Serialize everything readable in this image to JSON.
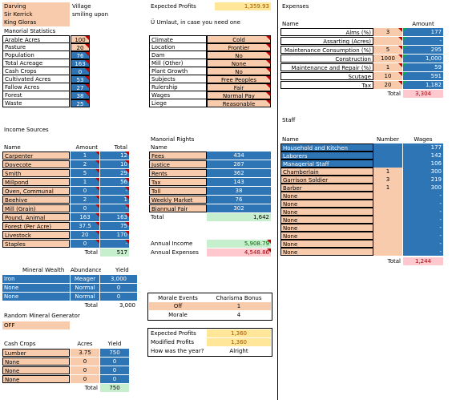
{
  "info": {
    "name_label": "Darving",
    "name_value": "Village",
    "lord_label": "Sir Kerrick",
    "lord_value": "smiling upon",
    "king_label": "King Gloras",
    "expected_profits_label": "Expected Profits",
    "expected_profits_value": "1,359.93",
    "note": "Ü  Umlaut, in case you need one"
  },
  "manorial": {
    "title": "Manorial Statistics",
    "rows": [
      {
        "label": "Arable Acres",
        "value": "100"
      },
      {
        "label": "Pasture",
        "value": "20"
      },
      {
        "label": "Population",
        "value": "76"
      },
      {
        "label": "Total Acreage",
        "value": "163"
      },
      {
        "label": "Cash Crops",
        "value": "0"
      },
      {
        "label": "Cultivated Acres",
        "value": "53"
      },
      {
        "label": "Fallow Acres",
        "value": "27"
      },
      {
        "label": "Forest",
        "value": "38"
      },
      {
        "label": "Waste",
        "value": "25"
      }
    ]
  },
  "attributes": {
    "rows": [
      {
        "label": "Climate",
        "value": "Cold"
      },
      {
        "label": "Location",
        "value": "Frontier"
      },
      {
        "label": "Dam",
        "value": "No"
      },
      {
        "label": "Mill (Other)",
        "value": "None"
      },
      {
        "label": "Plant Growth",
        "value": "No"
      },
      {
        "label": "Subjects",
        "value": "Free Peoples"
      },
      {
        "label": "Rulership",
        "value": "Fair"
      },
      {
        "label": "Wages",
        "value": "Normal Pay"
      },
      {
        "label": "Liege",
        "value": "Reasonable"
      }
    ]
  },
  "income": {
    "title": "Income Sources",
    "headers": {
      "name": "Name",
      "amount": "Amount",
      "total": "Total"
    },
    "rows": [
      {
        "name": "Carpenter",
        "amount": "1",
        "total": "12"
      },
      {
        "name": "Dovecote",
        "amount": "2",
        "total": "10"
      },
      {
        "name": "Smith",
        "amount": "5",
        "total": "29"
      },
      {
        "name": "Millpond",
        "amount": "1",
        "total": "56"
      },
      {
        "name": "Oven, Communal",
        "amount": "0",
        "total": "-"
      },
      {
        "name": "Beehive",
        "amount": "2",
        "total": "1"
      },
      {
        "name": "Mill (Grain)",
        "amount": "0",
        "total": "-"
      },
      {
        "name": "Pound, Animal",
        "amount": "163",
        "total": "163"
      },
      {
        "name": "Forest (Per Acre)",
        "amount": "37.5",
        "total": "75"
      },
      {
        "name": "Livestock",
        "amount": "20",
        "total": "170"
      },
      {
        "name": "Staples",
        "amount": "0",
        "total": "-"
      }
    ],
    "total_label": "Total",
    "total_value": "517"
  },
  "rights": {
    "title": "Manorial Rights",
    "name_header": "Name",
    "rows": [
      {
        "name": "Fees",
        "value": "434"
      },
      {
        "name": "Justice",
        "value": "287"
      },
      {
        "name": "Rents",
        "value": "362"
      },
      {
        "name": "Tax",
        "value": "143"
      },
      {
        "name": "Toll",
        "value": "38"
      },
      {
        "name": "Weekly Market",
        "value": "76"
      },
      {
        "name": "Biannual Fair",
        "value": "302"
      }
    ],
    "total_label": "Total",
    "total_value": "1,642",
    "annual_income_label": "Annual Income",
    "annual_income_value": "5,908.79",
    "annual_expenses_label": "Annual Expenses",
    "annual_expenses_value": "4,548.86"
  },
  "mineral": {
    "headers": {
      "name": "Mineral Wealth",
      "abundance": "Abundance",
      "yield": "Yield"
    },
    "rows": [
      {
        "name": "Iron",
        "abundance": "Meager",
        "yield": "3,000"
      },
      {
        "name": "None",
        "abundance": "Normal",
        "yield": "0"
      },
      {
        "name": "None",
        "abundance": "Normal",
        "yield": "0"
      }
    ],
    "total_label": "Total",
    "total_value": "3,000",
    "generator_label": "Random Mineral Generator",
    "generator_value": "OFF"
  },
  "crops": {
    "headers": {
      "name": "Cash Crops",
      "acres": "Acres",
      "yield": "Yield"
    },
    "rows": [
      {
        "name": "Lumber",
        "acres": "3.75",
        "yield": "750"
      },
      {
        "name": "None",
        "acres": "0",
        "yield": "0"
      },
      {
        "name": "None",
        "acres": "0",
        "yield": "0"
      },
      {
        "name": "None",
        "acres": "0",
        "yield": "0"
      }
    ],
    "total_label": "Total",
    "total_value": "750"
  },
  "morale": {
    "headers": {
      "events": "Morale Events",
      "charisma": "Charisma Bonus"
    },
    "events_value": "Off",
    "charisma_value": "1",
    "morale_label": "Morale",
    "morale_value": "4"
  },
  "profits": {
    "expected_label": "Expected Profits",
    "expected_value": "1,360",
    "modified_label": "Modified Profits",
    "modified_value": "1,360",
    "year_label": "How was the year?",
    "year_value": "Alright"
  },
  "expenses": {
    "title": "Expenses",
    "headers": {
      "name": "Name",
      "amount": "Amount"
    },
    "rows": [
      {
        "name": "Alms (%)",
        "pct": "3",
        "amount": "177"
      },
      {
        "name": "Assarting (Acres)",
        "pct": "",
        "amount": "-"
      },
      {
        "name": "Maintenance Consumption (%)",
        "pct": "5",
        "amount": "295"
      },
      {
        "name": "Construction",
        "pct": "1000",
        "amount": "1,000"
      },
      {
        "name": "Maintenance and Repair (%)",
        "pct": "1",
        "amount": "59"
      },
      {
        "name": "Scutage",
        "pct": "10",
        "amount": "591"
      },
      {
        "name": "Tax",
        "pct": "20",
        "amount": "1,182"
      }
    ],
    "total_label": "Total",
    "total_value": "3,304"
  },
  "staff": {
    "title": "Staff",
    "headers": {
      "name": "Name",
      "number": "Number",
      "wages": "Wages"
    },
    "rows": [
      {
        "name": "Household and Kitchen",
        "number": "",
        "wages": "177"
      },
      {
        "name": "Laborers",
        "number": "",
        "wages": "142"
      },
      {
        "name": "Managerial Staff",
        "number": "",
        "wages": "106"
      },
      {
        "name": "Chamberlain",
        "number": "1",
        "wages": "300"
      },
      {
        "name": "Garrison Soldier",
        "number": "3",
        "wages": "219"
      },
      {
        "name": "Barber",
        "number": "1",
        "wages": "300"
      },
      {
        "name": "None",
        "number": "",
        "wages": "-"
      },
      {
        "name": "None",
        "number": "",
        "wages": "-"
      },
      {
        "name": "None",
        "number": "",
        "wages": "-"
      },
      {
        "name": "None",
        "number": "",
        "wages": "-"
      },
      {
        "name": "None",
        "number": "",
        "wages": "-"
      },
      {
        "name": "None",
        "number": "",
        "wages": "-"
      },
      {
        "name": "None",
        "number": "",
        "wages": "-"
      },
      {
        "name": "None",
        "number": "",
        "wages": "-"
      }
    ],
    "total_label": "Total",
    "total_value": "1,244"
  },
  "colors": {
    "peach": "#f8cbad",
    "blue": "#2e75b6",
    "green": "#c6efce",
    "pink": "#ffc7ce",
    "yellow": "#ffe699"
  }
}
